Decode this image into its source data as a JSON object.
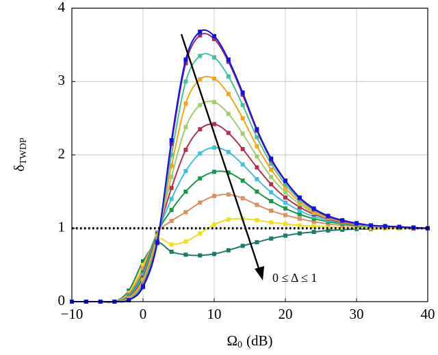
{
  "chart_data": {
    "type": "line",
    "x_label": {
      "main": "Ω",
      "sub": "0",
      "unit": "(dB)"
    },
    "y_label": {
      "main": "δ",
      "sub": "TWDP"
    },
    "annotation": "0 ≤ Δ ≤ 1",
    "hline": 1,
    "grid": true,
    "xlim": [
      -10,
      40
    ],
    "xticks": [
      {
        "value": -10,
        "label": "−10"
      },
      0,
      10,
      20,
      30,
      40
    ],
    "ylim": [
      0,
      4
    ],
    "yticks": [
      0,
      1,
      2,
      3,
      4
    ],
    "x": [
      -10,
      -8,
      -6,
      -4,
      -2,
      0,
      2,
      4,
      6,
      8,
      10,
      12,
      14,
      16,
      18,
      20,
      22,
      24,
      26,
      28,
      30,
      32,
      34,
      36,
      38,
      40
    ],
    "series": [
      {
        "color": "#1010e8",
        "values": [
          0,
          0,
          0,
          0,
          0.02,
          0.2,
          0.8,
          2.2,
          3.3,
          3.68,
          3.62,
          3.3,
          2.85,
          2.35,
          1.95,
          1.65,
          1.42,
          1.27,
          1.17,
          1.11,
          1.07,
          1.04,
          1.03,
          1.02,
          1.01,
          1.0
        ]
      },
      {
        "color": "#8e2f6e",
        "values": [
          0,
          0,
          0,
          0,
          0.02,
          0.22,
          0.82,
          2.15,
          3.25,
          3.63,
          3.58,
          3.27,
          2.82,
          2.33,
          1.93,
          1.64,
          1.41,
          1.26,
          1.16,
          1.1,
          1.06,
          1.04,
          1.03,
          1.02,
          1.01,
          1.0
        ]
      },
      {
        "color": "#45c29a",
        "values": [
          0,
          0,
          0,
          0,
          0.03,
          0.25,
          0.85,
          2.0,
          3.0,
          3.35,
          3.33,
          3.07,
          2.68,
          2.24,
          1.88,
          1.6,
          1.39,
          1.25,
          1.16,
          1.1,
          1.06,
          1.04,
          1.03,
          1.02,
          1.01,
          1.0
        ]
      },
      {
        "color": "#f7a21b",
        "values": [
          0,
          0,
          0,
          0,
          0.04,
          0.28,
          0.88,
          1.85,
          2.7,
          3.03,
          3.04,
          2.83,
          2.5,
          2.12,
          1.8,
          1.55,
          1.36,
          1.23,
          1.15,
          1.09,
          1.06,
          1.04,
          1.02,
          1.01,
          1.01,
          1.0
        ]
      },
      {
        "color": "#9dce6a",
        "values": [
          0,
          0,
          0,
          0,
          0.05,
          0.3,
          0.9,
          1.7,
          2.38,
          2.68,
          2.72,
          2.56,
          2.29,
          1.98,
          1.7,
          1.49,
          1.33,
          1.21,
          1.14,
          1.09,
          1.05,
          1.03,
          1.02,
          1.01,
          1.01,
          1.0
        ]
      },
      {
        "color": "#b5304a",
        "values": [
          0,
          0,
          0,
          0,
          0.06,
          0.33,
          0.92,
          1.55,
          2.07,
          2.35,
          2.42,
          2.3,
          2.08,
          1.83,
          1.6,
          1.42,
          1.29,
          1.19,
          1.13,
          1.08,
          1.05,
          1.03,
          1.02,
          1.01,
          1.0,
          1.0
        ]
      },
      {
        "color": "#3cc0dc",
        "values": [
          0,
          0,
          0,
          0,
          0.07,
          0.36,
          0.93,
          1.4,
          1.78,
          2.02,
          2.1,
          2.04,
          1.87,
          1.67,
          1.49,
          1.35,
          1.24,
          1.16,
          1.11,
          1.07,
          1.05,
          1.03,
          1.02,
          1.01,
          1.0,
          1.0
        ]
      },
      {
        "color": "#17984a",
        "values": [
          0,
          0,
          0,
          0,
          0.08,
          0.4,
          0.94,
          1.25,
          1.5,
          1.68,
          1.77,
          1.76,
          1.65,
          1.5,
          1.37,
          1.27,
          1.19,
          1.13,
          1.09,
          1.06,
          1.04,
          1.03,
          1.02,
          1.01,
          1.0,
          1.0
        ]
      },
      {
        "color": "#d98f62",
        "values": [
          0,
          0,
          0,
          0,
          0.1,
          0.45,
          0.93,
          1.1,
          1.22,
          1.35,
          1.44,
          1.46,
          1.41,
          1.32,
          1.24,
          1.18,
          1.13,
          1.09,
          1.06,
          1.04,
          1.03,
          1.02,
          1.01,
          1.01,
          1.0,
          1.0
        ]
      },
      {
        "color": "#f2df1c",
        "values": [
          0,
          0,
          0,
          0,
          0.12,
          0.5,
          0.85,
          0.78,
          0.82,
          0.93,
          1.05,
          1.12,
          1.13,
          1.11,
          1.08,
          1.06,
          1.04,
          1.03,
          1.02,
          1.01,
          1.01,
          1.0,
          1.0,
          1.0,
          1.0,
          1.0
        ]
      },
      {
        "color": "#1b7a6c",
        "values": [
          0,
          0,
          0,
          0,
          0.15,
          0.55,
          0.8,
          0.68,
          0.64,
          0.63,
          0.65,
          0.7,
          0.76,
          0.81,
          0.86,
          0.9,
          0.93,
          0.95,
          0.97,
          0.98,
          0.99,
          0.99,
          1.0,
          1.0,
          1.0,
          1.0
        ]
      }
    ]
  }
}
